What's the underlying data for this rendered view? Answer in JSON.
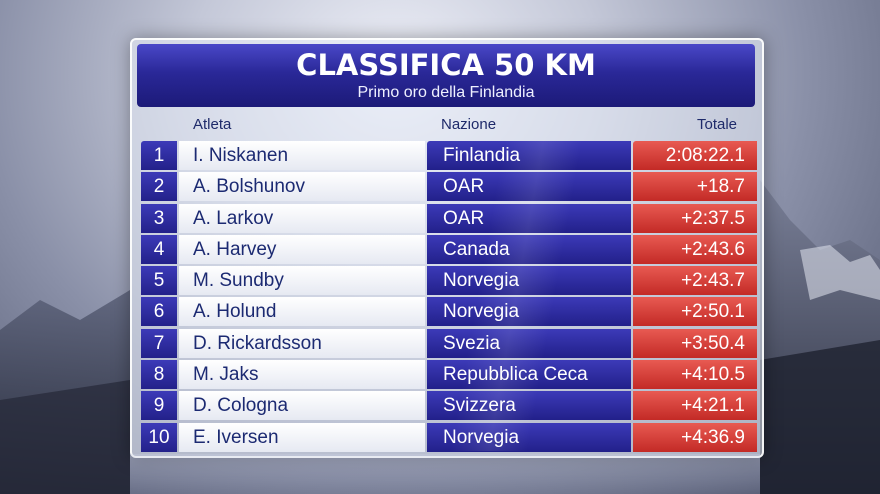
{
  "header": {
    "title": "CLASSIFICA 50 KM",
    "subtitle": "Primo oro della Finlandia"
  },
  "columns": {
    "athlete": "Atleta",
    "nation": "Nazione",
    "total": "Totale"
  },
  "colors": {
    "header_blue": "#2a2898",
    "nation_blue": "#2d2ba0",
    "total_red": "#d33a34",
    "name_text": "#1c2a72"
  },
  "rows": [
    {
      "rank": "1",
      "name": "I. Niskanen",
      "nation": "Finlandia",
      "total": "2:08:22.1"
    },
    {
      "rank": "2",
      "name": "A. Bolshunov",
      "nation": "OAR",
      "total": "+18.7"
    },
    {
      "rank": "3",
      "name": "A. Larkov",
      "nation": "OAR",
      "total": "+2:37.5"
    },
    {
      "rank": "4",
      "name": "A. Harvey",
      "nation": "Canada",
      "total": "+2:43.6"
    },
    {
      "rank": "5",
      "name": "M. Sundby",
      "nation": "Norvegia",
      "total": "+2:43.7"
    },
    {
      "rank": "6",
      "name": "A. Holund",
      "nation": "Norvegia",
      "total": "+2:50.1"
    },
    {
      "rank": "7",
      "name": "D. Rickardsson",
      "nation": "Svezia",
      "total": "+3:50.4"
    },
    {
      "rank": "8",
      "name": "M. Jaks",
      "nation": "Repubblica Ceca",
      "total": "+4:10.5"
    },
    {
      "rank": "9",
      "name": "D. Cologna",
      "nation": "Svizzera",
      "total": "+4:21.1"
    },
    {
      "rank": "10",
      "name": "E. Iversen",
      "nation": "Norvegia",
      "total": "+4:36.9"
    }
  ]
}
